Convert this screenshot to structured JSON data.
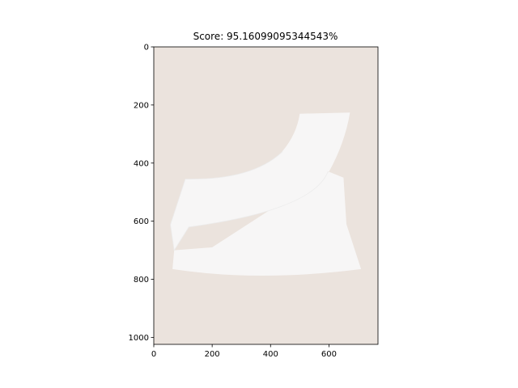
{
  "chart_data": {
    "type": "image",
    "title": "Score: 95.16099095344543%",
    "xlabel": "",
    "ylabel": "",
    "xlim": [
      0,
      768
    ],
    "ylim": [
      1024,
      0
    ],
    "x_ticks": [
      0,
      200,
      400,
      600
    ],
    "y_ticks": [
      0,
      200,
      400,
      600,
      800,
      1000
    ],
    "grid": false,
    "image_subject": "white one-shoulder ruffle top on beige background",
    "colors": {
      "background": "#ebe3dd",
      "garment": "#f7f6f6",
      "garment_shadow": "#ececec"
    }
  }
}
